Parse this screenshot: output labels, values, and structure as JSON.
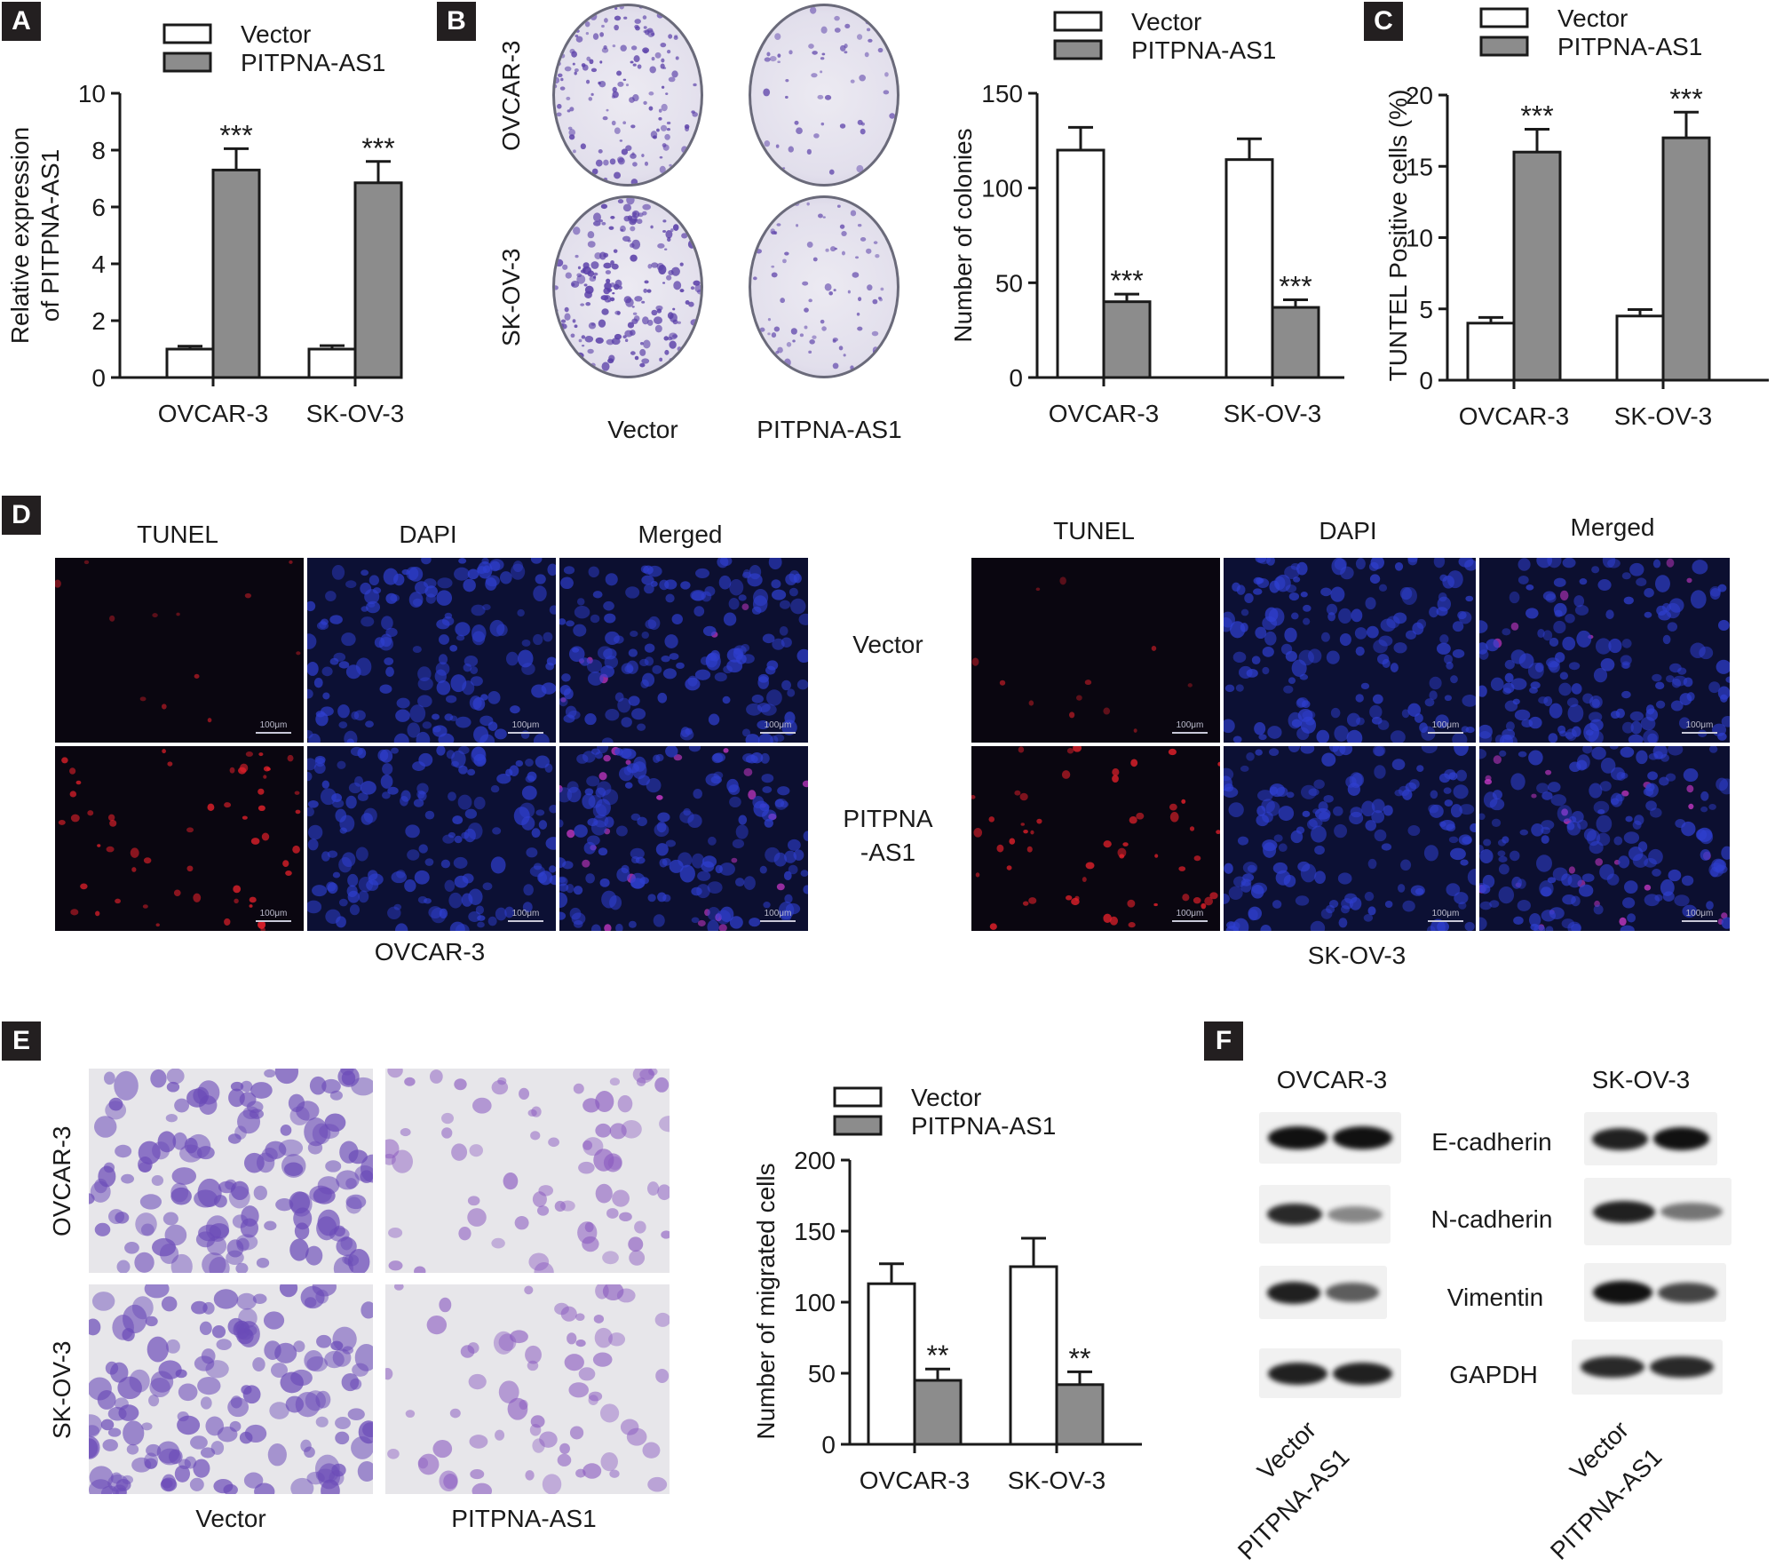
{
  "panels": {
    "A": "A",
    "B": "B",
    "C": "C",
    "D": "D",
    "E": "E",
    "F": "F"
  },
  "legend": {
    "vector": "Vector",
    "pitpna": "PITPNA-AS1"
  },
  "colors": {
    "vector": "#ffffff",
    "pitpna": "#8c8c8c",
    "stroke": "#1a1a1a",
    "crystal_violet": "#5a3fa8",
    "tunel_red": "#e0202a",
    "dapi_blue": "#2f3fd0"
  },
  "sig": {
    "three": "***",
    "two": "**"
  },
  "chart_data": [
    {
      "id": "A",
      "type": "bar",
      "categories": [
        "OVCAR-3",
        "SK-OV-3"
      ],
      "series": [
        {
          "name": "Vector",
          "values": [
            1.0,
            1.0
          ],
          "errors": [
            0.1,
            0.12
          ]
        },
        {
          "name": "PITPNA-AS1",
          "values": [
            7.3,
            6.85
          ],
          "errors": [
            0.75,
            0.75
          ]
        }
      ],
      "ylabel": "Relative expression of PITPNA-AS1",
      "ylabel_line1": "Relative expression",
      "ylabel_line2": "of PITPNA-AS1",
      "ylim": [
        0,
        10
      ],
      "yticks": [
        0,
        2,
        4,
        6,
        8,
        10
      ],
      "annotations": [
        "***",
        "***"
      ]
    },
    {
      "id": "B",
      "type": "bar",
      "categories": [
        "OVCAR-3",
        "SK-OV-3"
      ],
      "series": [
        {
          "name": "Vector",
          "values": [
            120,
            115
          ],
          "errors": [
            12,
            11
          ]
        },
        {
          "name": "PITPNA-AS1",
          "values": [
            40,
            37
          ],
          "errors": [
            4,
            4
          ]
        }
      ],
      "ylabel": "Number of colonies",
      "ylim": [
        0,
        150
      ],
      "yticks": [
        0,
        50,
        100,
        150
      ],
      "annotations": [
        "***",
        "***"
      ]
    },
    {
      "id": "C",
      "type": "bar",
      "categories": [
        "OVCAR-3",
        "SK-OV-3"
      ],
      "series": [
        {
          "name": "Vector",
          "values": [
            4.0,
            4.5
          ],
          "errors": [
            0.4,
            0.45
          ]
        },
        {
          "name": "PITPNA-AS1",
          "values": [
            16.0,
            17.0
          ],
          "errors": [
            1.6,
            1.8
          ]
        }
      ],
      "ylabel": "TUNTEL Positive cells (%)",
      "ylim": [
        0,
        20
      ],
      "yticks": [
        0,
        5,
        10,
        15,
        20
      ],
      "annotations": [
        "***",
        "***"
      ]
    },
    {
      "id": "E",
      "type": "bar",
      "categories": [
        "OVCAR-3",
        "SK-OV-3"
      ],
      "series": [
        {
          "name": "Vector",
          "values": [
            113,
            125
          ],
          "errors": [
            14,
            20
          ]
        },
        {
          "name": "PITPNA-AS1",
          "values": [
            45,
            42
          ],
          "errors": [
            8,
            9
          ]
        }
      ],
      "ylabel": "Number of migrated cells",
      "ylim": [
        0,
        200
      ],
      "yticks": [
        0,
        50,
        100,
        150,
        200
      ],
      "annotations": [
        "**",
        "**"
      ]
    }
  ],
  "panelB": {
    "row_labels": [
      "OVCAR-3",
      "SK-OV-3"
    ],
    "col_labels": [
      "Vector",
      "PITPNA-AS1"
    ]
  },
  "panelD": {
    "col_labels": [
      "TUNEL",
      "DAPI",
      "Merged"
    ],
    "row_labels": [
      "Vector",
      "PITPNA",
      "-AS1"
    ],
    "groups": [
      "OVCAR-3",
      "SK-OV-3"
    ],
    "scale": "100μm"
  },
  "panelE": {
    "row_labels": [
      "OVCAR-3",
      "SK-OV-3"
    ],
    "col_labels": [
      "Vector",
      "PITPNA-AS1"
    ]
  },
  "panelF": {
    "groups": [
      "OVCAR-3",
      "SK-OV-3"
    ],
    "proteins": [
      "E-cadherin",
      "N-cadherin",
      "Vimentin",
      "GAPDH"
    ],
    "lanes": [
      "Vector",
      "PITPNA-AS1"
    ],
    "intensity": {
      "OVCAR-3": [
        [
          1,
          1
        ],
        [
          0.85,
          0.3
        ],
        [
          0.9,
          0.55
        ],
        [
          0.9,
          0.9
        ]
      ],
      "SK-OV-3": [
        [
          0.9,
          1
        ],
        [
          0.9,
          0.4
        ],
        [
          1,
          0.7
        ],
        [
          0.85,
          0.85
        ]
      ]
    }
  }
}
